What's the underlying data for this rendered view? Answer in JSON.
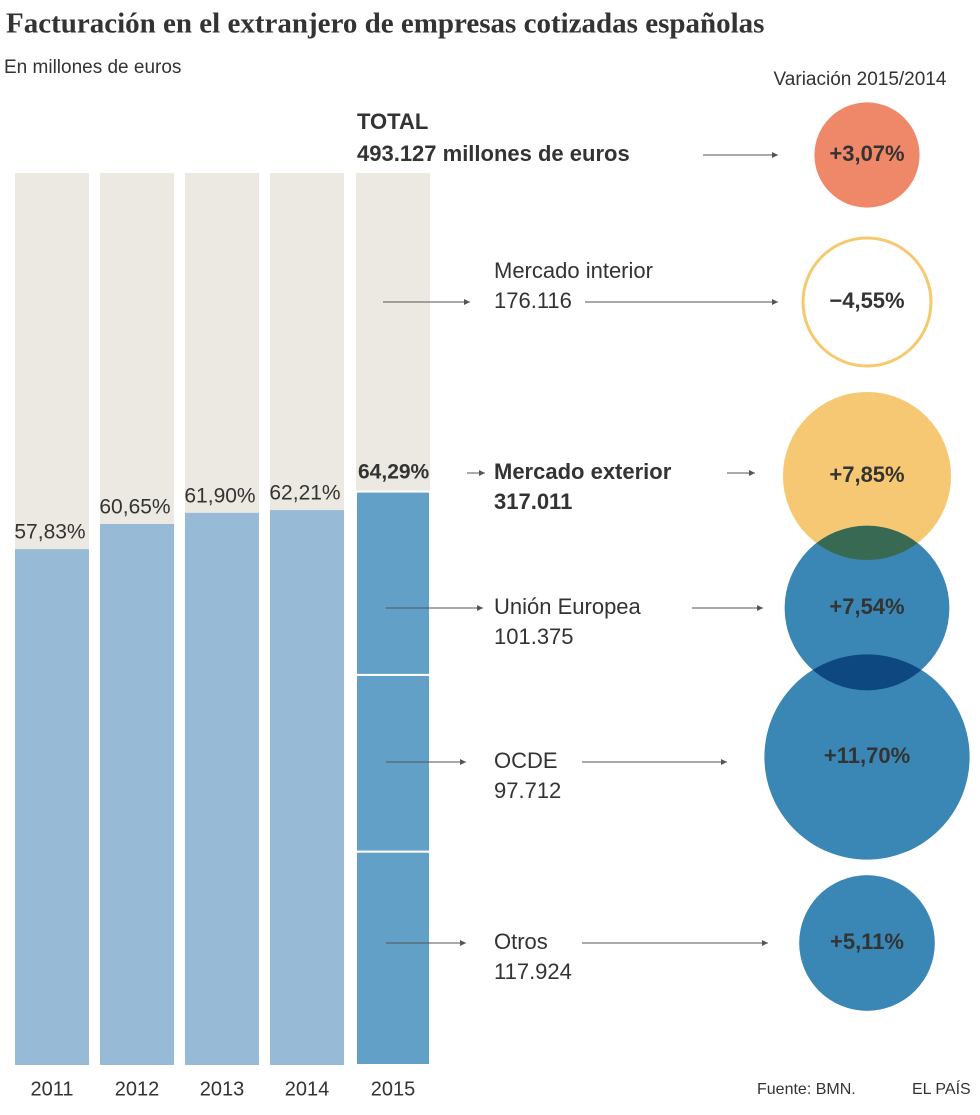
{
  "title": "Facturación en el extranjero de empresas cotizadas españolas",
  "subtitle": "En millones de euros",
  "change_header": "Variación 2015/2014",
  "source": "Fuente: BMN.",
  "brand": "EL PAÍS",
  "chart_data": {
    "type": "bar",
    "categories": [
      "2011",
      "2012",
      "2013",
      "2014",
      "2015"
    ],
    "values": [
      57.83,
      60.65,
      61.9,
      62.21,
      64.29
    ],
    "value_labels": [
      "57,83%",
      "60,65%",
      "61,90%",
      "62,21%",
      "64,29%"
    ],
    "ylim": [
      0,
      100
    ],
    "colors": {
      "background": "#ebe9e1",
      "exterior": "#97bad6",
      "exterior_last": "#62a0c7"
    },
    "total": {
      "name": "TOTAL",
      "value": 493127,
      "value_label": "493.127 millones de euros",
      "change": 3.07,
      "change_label": "+3,07%",
      "color": "#ef8769"
    },
    "segments": [
      {
        "name": "Mercado interior",
        "value": 176116,
        "value_label": "176.116",
        "change": -4.55,
        "change_label": "−4,55%",
        "color": "#f7c96e"
      },
      {
        "name": "Mercado exterior",
        "value": 317011,
        "value_label": "317.011",
        "change": 7.85,
        "change_label": "+7,85%",
        "color": "#f7c874"
      },
      {
        "name": "Unión Europea",
        "value": 101375,
        "value_label": "101.375",
        "change": 7.54,
        "change_label": "+7,54%",
        "color": "#3a87b5"
      },
      {
        "name": "OCDE",
        "value": 97712,
        "value_label": "97.712",
        "change": 11.7,
        "change_label": "+11,70%",
        "color": "#3a87b5"
      },
      {
        "name": "Otros",
        "value": 117924,
        "value_label": "117.924",
        "change": 5.11,
        "change_label": "+5,11%",
        "color": "#3a87b5"
      }
    ]
  }
}
